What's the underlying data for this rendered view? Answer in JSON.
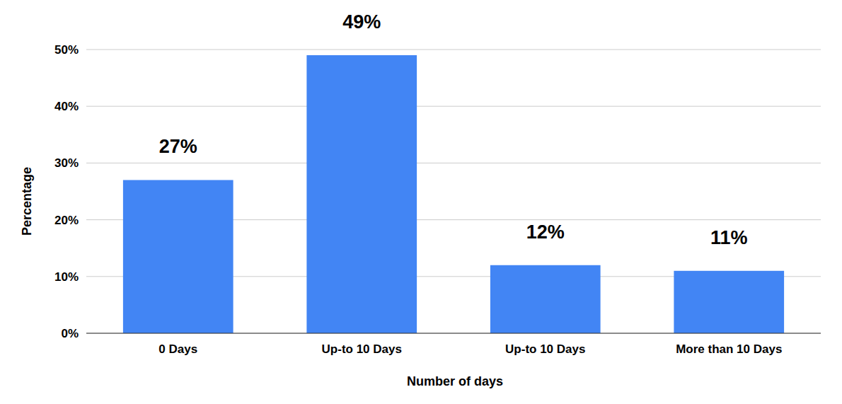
{
  "chart_data": {
    "type": "bar",
    "x_label": "Number of days",
    "y_label": "Percentage",
    "categories": [
      "0 Days",
      "Up-to 10 Days",
      "Up-to 10 Days",
      "More than 10 Days"
    ],
    "values": [
      27,
      49,
      12,
      11
    ],
    "value_labels": [
      "27%",
      "49%",
      "12%",
      "11%"
    ],
    "color": "#4285f4",
    "ylim": [
      0,
      50
    ],
    "yticks": [
      {
        "value": 0,
        "label": "0%"
      },
      {
        "value": 10,
        "label": "10%"
      },
      {
        "value": 20,
        "label": "20%"
      },
      {
        "value": 30,
        "label": "30%"
      },
      {
        "value": 40,
        "label": "40%"
      },
      {
        "value": 50,
        "label": "50%"
      }
    ],
    "grid": true,
    "data_labels": true
  }
}
